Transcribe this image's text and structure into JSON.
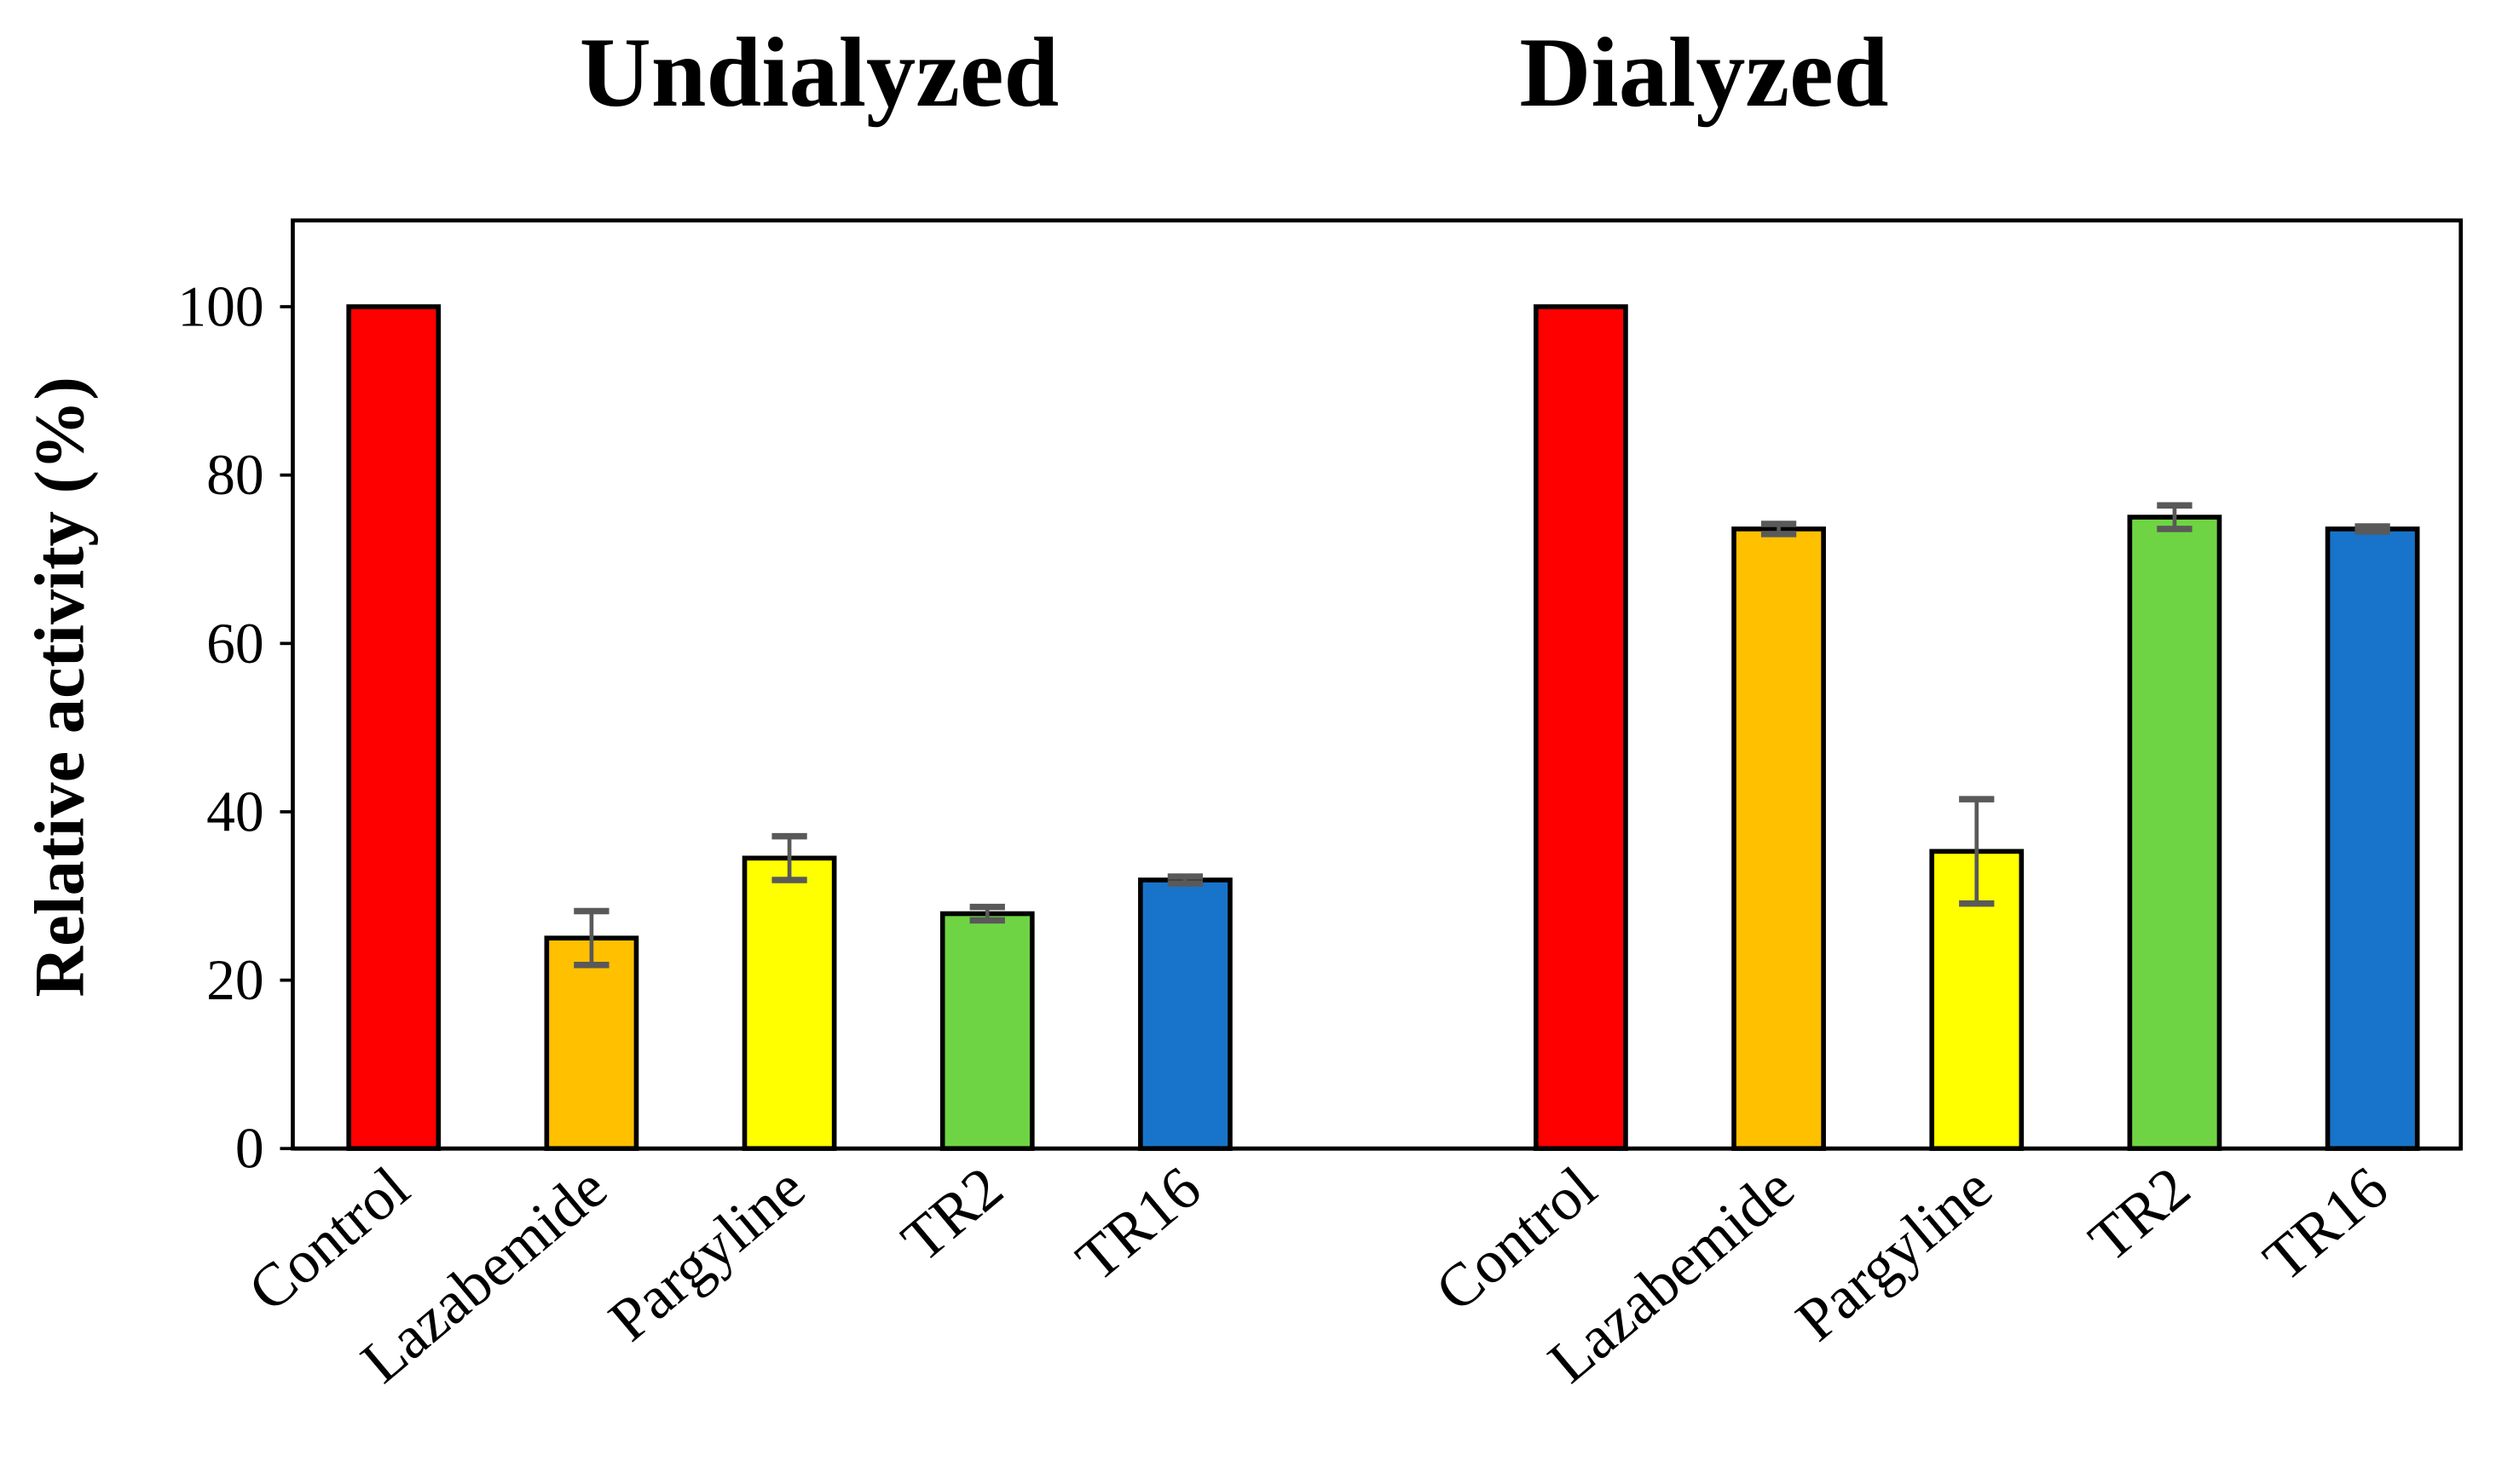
{
  "chart_data": {
    "type": "bar",
    "ylabel": "Relative activity (%)",
    "xlabel": "",
    "ylim": [
      0,
      110
    ],
    "yticks": [
      0,
      20,
      40,
      60,
      80,
      100
    ],
    "grid": false,
    "legend": "none",
    "error_bar_color": "#595959",
    "groups": [
      {
        "title": "Undialyzed",
        "categories": [
          "Control",
          "Lazabemide",
          "Pargyline",
          "TR2",
          "TR16"
        ],
        "values": [
          100,
          25.0,
          34.5,
          27.9,
          31.9
        ],
        "errors": [
          0,
          3.2,
          2.6,
          0.8,
          0.4
        ],
        "colors": [
          "#FF0000",
          "#FFC000",
          "#FFFF00",
          "#6FD443",
          "#1874CA"
        ]
      },
      {
        "title": "Dialyzed",
        "categories": [
          "Control",
          "Lazabemide",
          "Pargyline",
          "TR2",
          "TR16"
        ],
        "values": [
          100,
          73.6,
          35.3,
          75.0,
          73.6
        ],
        "errors": [
          0,
          0.6,
          6.2,
          1.4,
          0.3
        ],
        "colors": [
          "#FF0000",
          "#FFC000",
          "#FFFF00",
          "#6FD443",
          "#1874CA"
        ]
      }
    ]
  }
}
